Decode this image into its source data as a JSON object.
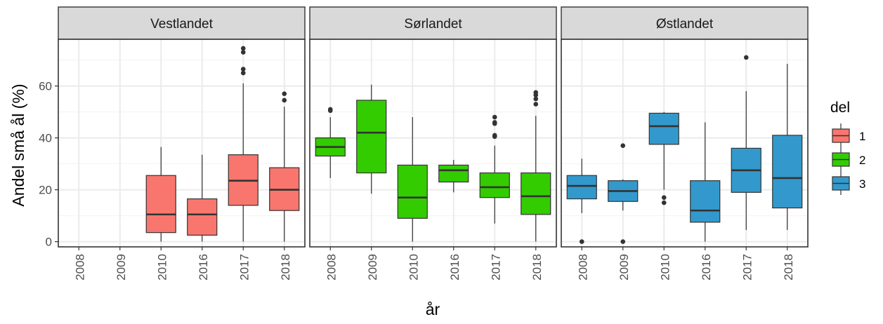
{
  "chart_data": {
    "type": "boxplot",
    "ylabel": "Andel små ål (%)",
    "xlabel": "år",
    "ylim": [
      -2,
      78
    ],
    "y_ticks": [
      0,
      20,
      40,
      60
    ],
    "x_categories": [
      "2008",
      "2009",
      "2010",
      "2016",
      "2017",
      "2018"
    ],
    "grid": true,
    "legend": {
      "title": "del",
      "position": "right",
      "entries": [
        {
          "label": "1",
          "color": "#F8766D"
        },
        {
          "label": "2",
          "color": "#33CC00"
        },
        {
          "label": "3",
          "color": "#3399CC"
        }
      ]
    },
    "panels": [
      {
        "strip": "Vestlandet",
        "del": "1",
        "color": "#F8766D",
        "boxes": [
          {
            "x": "2010",
            "min": 0,
            "q1": 3.5,
            "median": 10.5,
            "q3": 25.5,
            "max": 36.5,
            "outliers": []
          },
          {
            "x": "2016",
            "min": 0,
            "q1": 2.5,
            "median": 10.5,
            "q3": 16.5,
            "max": 33.5,
            "outliers": []
          },
          {
            "x": "2017",
            "min": 0,
            "q1": 14,
            "median": 23.5,
            "q3": 33.5,
            "max": 61,
            "outliers": [
              65,
              66.5,
              73,
              74.5
            ]
          },
          {
            "x": "2018",
            "min": 0,
            "q1": 12,
            "median": 20,
            "q3": 28.5,
            "max": 52,
            "outliers": [
              54.5,
              57
            ]
          }
        ]
      },
      {
        "strip": "Sørlandet",
        "del": "2",
        "color": "#33CC00",
        "boxes": [
          {
            "x": "2008",
            "min": 24.5,
            "q1": 33,
            "median": 36.5,
            "q3": 40,
            "max": 48,
            "outliers": [
              50.5,
              51
            ]
          },
          {
            "x": "2009",
            "min": 18.5,
            "q1": 26.5,
            "median": 42,
            "q3": 54.5,
            "max": 60.5,
            "outliers": []
          },
          {
            "x": "2010",
            "min": 0,
            "q1": 9,
            "median": 17,
            "q3": 29.5,
            "max": 48,
            "outliers": []
          },
          {
            "x": "2016",
            "min": 19,
            "q1": 23,
            "median": 27.5,
            "q3": 29.5,
            "max": 31.5,
            "outliers": []
          },
          {
            "x": "2017",
            "min": 7,
            "q1": 17,
            "median": 21,
            "q3": 26.5,
            "max": 37,
            "outliers": [
              40.5,
              41,
              45.5,
              46,
              48
            ]
          },
          {
            "x": "2018",
            "min": 0,
            "q1": 10.5,
            "median": 17.5,
            "q3": 26.5,
            "max": 48.5,
            "outliers": [
              53,
              55,
              56.5,
              57.5
            ]
          }
        ]
      },
      {
        "strip": "Østlandet",
        "del": "3",
        "color": "#3399CC",
        "boxes": [
          {
            "x": "2008",
            "min": 11,
            "q1": 16.5,
            "median": 21.5,
            "q3": 25.5,
            "max": 32,
            "outliers": [
              0
            ]
          },
          {
            "x": "2009",
            "min": 12,
            "q1": 15.5,
            "median": 19.5,
            "q3": 23.5,
            "max": 24,
            "outliers": [
              0,
              37
            ]
          },
          {
            "x": "2010",
            "min": 20,
            "q1": 37.5,
            "median": 44.5,
            "q3": 49.5,
            "max": 50,
            "outliers": [
              15,
              17
            ]
          },
          {
            "x": "2016",
            "min": 0,
            "q1": 7.5,
            "median": 12,
            "q3": 23.5,
            "max": 46,
            "outliers": []
          },
          {
            "x": "2017",
            "min": 4.5,
            "q1": 19,
            "median": 27.5,
            "q3": 36,
            "max": 58,
            "outliers": [
              71
            ]
          },
          {
            "x": "2018",
            "min": 4.5,
            "q1": 13,
            "median": 24.5,
            "q3": 41,
            "max": 68.5,
            "outliers": []
          }
        ]
      }
    ]
  }
}
